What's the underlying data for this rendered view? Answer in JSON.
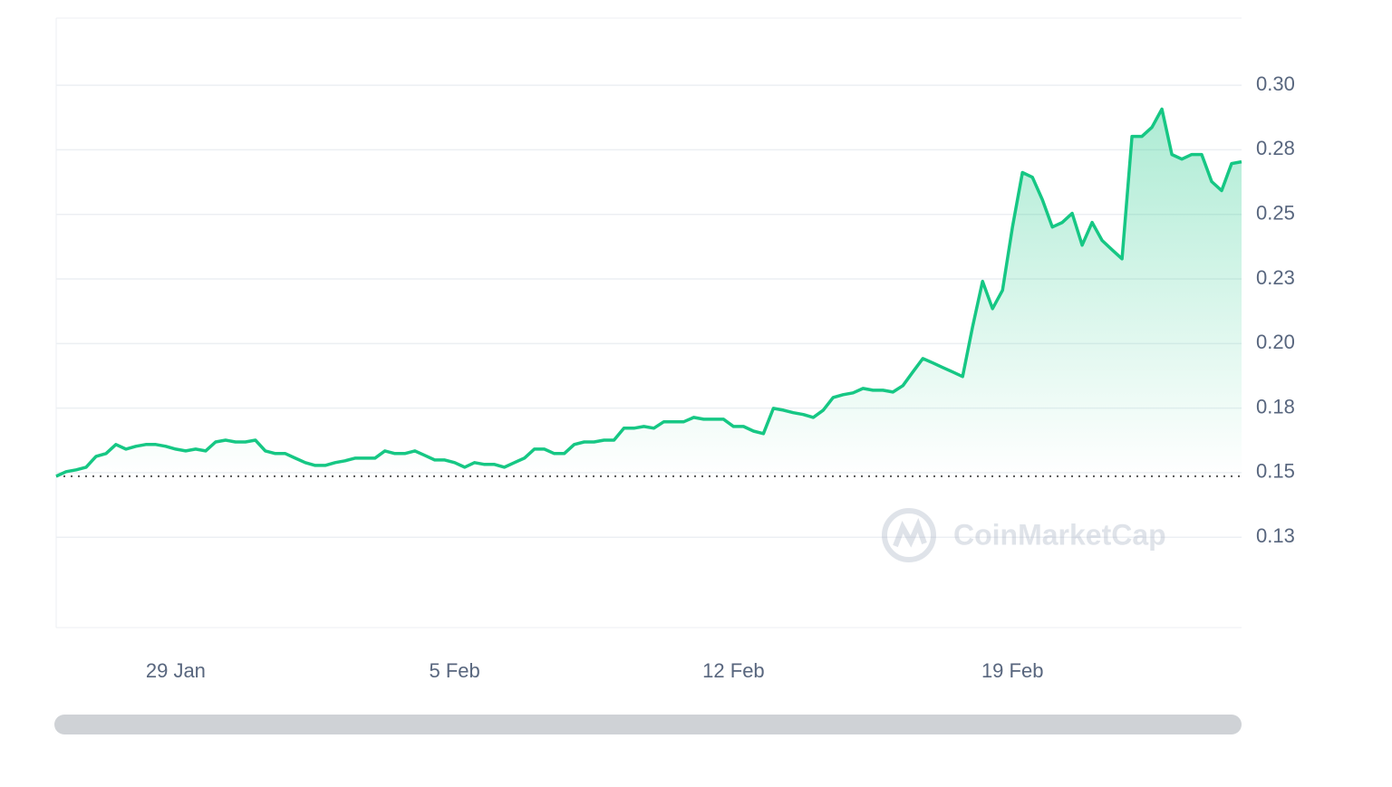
{
  "chart_data": {
    "type": "line",
    "watermark": "CoinMarketCap",
    "color": "#16c784",
    "grid": true,
    "categories": [
      null,
      null,
      null,
      null,
      null,
      null,
      null,
      null,
      null,
      null,
      null,
      null,
      "29 Jan",
      null,
      null,
      null,
      null,
      null,
      null,
      null,
      null,
      null,
      null,
      null,
      null,
      null,
      null,
      null,
      null,
      null,
      null,
      null,
      null,
      null,
      null,
      null,
      null,
      null,
      null,
      null,
      "5 Feb",
      null,
      null,
      null,
      null,
      null,
      null,
      null,
      null,
      null,
      null,
      null,
      null,
      null,
      null,
      null,
      null,
      null,
      null,
      null,
      null,
      null,
      null,
      null,
      null,
      null,
      null,
      null,
      "12 Feb",
      null,
      null,
      null,
      null,
      null,
      null,
      null,
      null,
      null,
      null,
      null,
      null,
      null,
      null,
      null,
      null,
      null,
      null,
      null,
      null,
      null,
      null,
      null,
      null,
      null,
      null,
      null,
      "19 Feb",
      null,
      null,
      null,
      null,
      null,
      null,
      null,
      null,
      null,
      null,
      null,
      null,
      null,
      null,
      null,
      null,
      null,
      null,
      null,
      null,
      null,
      null,
      null
    ],
    "values": [
      0.1486,
      0.1504,
      0.1511,
      0.1521,
      0.1563,
      0.1574,
      0.1609,
      0.1591,
      0.1602,
      0.1609,
      0.1609,
      0.1602,
      0.1591,
      0.1584,
      0.1591,
      0.1584,
      0.1619,
      0.1626,
      0.1619,
      0.1619,
      0.1626,
      0.1584,
      0.1574,
      0.1574,
      0.1556,
      0.1539,
      0.1528,
      0.1528,
      0.1539,
      0.1546,
      0.1556,
      0.1556,
      0.1556,
      0.1584,
      0.1574,
      0.1574,
      0.1584,
      0.1567,
      0.1549,
      0.1549,
      0.1539,
      0.1521,
      0.1539,
      0.1532,
      0.1532,
      0.1521,
      0.1539,
      0.1556,
      0.1591,
      0.1591,
      0.1574,
      0.1574,
      0.1609,
      0.1619,
      0.1619,
      0.1626,
      0.1626,
      0.1672,
      0.1672,
      0.1679,
      0.1672,
      0.1697,
      0.1697,
      0.1697,
      0.1714,
      0.1707,
      0.1707,
      0.1707,
      0.1679,
      0.1679,
      0.1661,
      0.1651,
      0.1749,
      0.1742,
      0.1732,
      0.1725,
      0.1714,
      0.1742,
      0.1791,
      0.1802,
      0.1809,
      0.1826,
      0.1819,
      0.1819,
      0.1812,
      0.1837,
      0.189,
      0.1942,
      0.1925,
      0.1907,
      0.189,
      0.1872,
      0.2065,
      0.2241,
      0.2135,
      0.2206,
      0.2451,
      0.2662,
      0.2644,
      0.2557,
      0.2451,
      0.2469,
      0.2504,
      0.2381,
      0.2469,
      0.2399,
      0.2363,
      0.2328,
      0.2802,
      0.2802,
      0.2837,
      0.2908,
      0.2732,
      0.2714,
      0.2732,
      0.2732,
      0.2627,
      0.2592,
      0.2697,
      0.2704
    ],
    "ylim": [
      0.09,
      0.326
    ],
    "yticks": [
      {
        "value": 0.125,
        "label": "0.13"
      },
      0.15,
      {
        "value": 0.175,
        "label": "0.18"
      },
      {
        "value": 0.2,
        "label": "0.20"
      },
      {
        "value": 0.225,
        "label": "0.23"
      },
      0.25,
      {
        "value": 0.275,
        "label": "0.28"
      },
      {
        "value": 0.3,
        "label": "0.30"
      }
    ]
  }
}
